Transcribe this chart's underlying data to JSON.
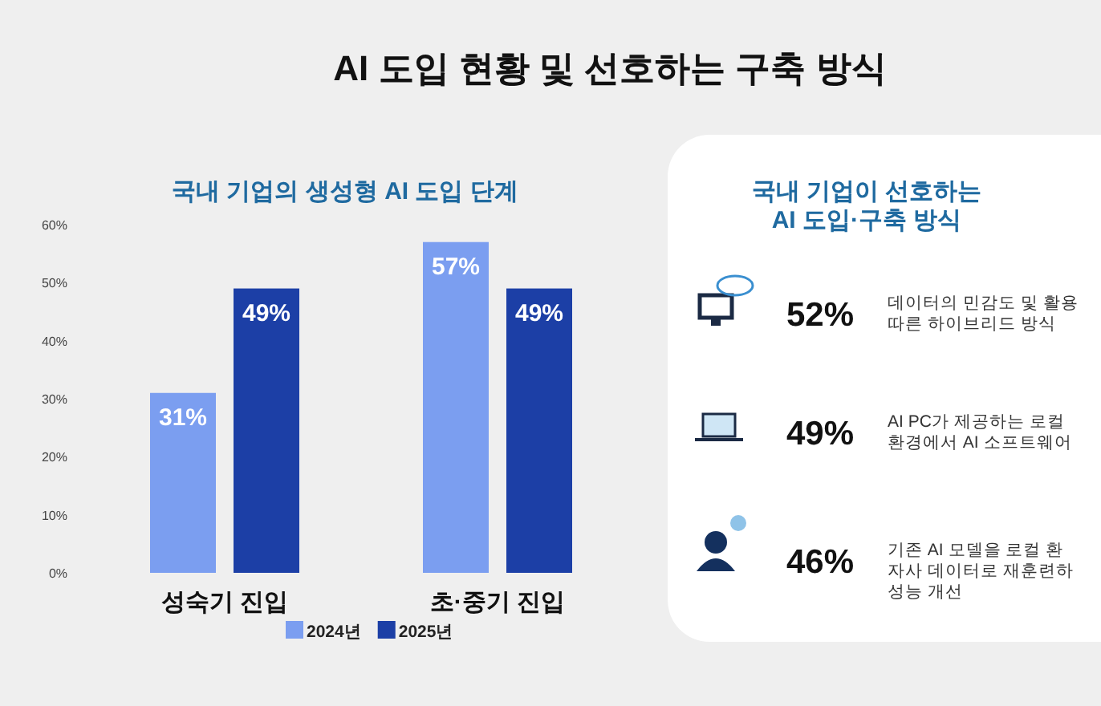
{
  "chart_data": [
    {
      "type": "bar",
      "title": "AI 도입 현황 및 선호하는 구축 방식",
      "subtitle": "국내 기업의 생성형 AI 도입 단계",
      "categories": [
        "성숙기 진입",
        "초·중기 진입"
      ],
      "series": [
        {
          "name": "2024년",
          "color": "#7b9ef0",
          "values": [
            31,
            57
          ],
          "value_labels": [
            "31%",
            "57%"
          ]
        },
        {
          "name": "2025년",
          "color": "#1c3fa6",
          "values": [
            49,
            49
          ],
          "value_labels": [
            "49%",
            "49%"
          ]
        }
      ],
      "ylim": [
        0,
        60
      ],
      "yticks": [
        {
          "value": 0,
          "label": "0%"
        },
        {
          "value": 10,
          "label": "10%"
        },
        {
          "value": 20,
          "label": "20%"
        },
        {
          "value": 30,
          "label": "30%"
        },
        {
          "value": 40,
          "label": "40%"
        },
        {
          "value": 50,
          "label": "50%"
        },
        {
          "value": 60,
          "label": "60%"
        }
      ],
      "legend": "bottom",
      "grid": false
    },
    {
      "type": "other",
      "title": "국내 기업이 선호하는\nAI 도입·구축 방식",
      "categories": [
        "데이터의 민감도 및 활용\n따른 하이브리드 방식",
        "AI PC가 제공하는 로컬\n환경에서 AI 소프트웨어",
        "기존 AI 모델을 로컬 환\n자사 데이터로 재훈련하\n성능 개선"
      ],
      "annotations": [
        "52%",
        "49%",
        "46%"
      ]
    }
  ]
}
